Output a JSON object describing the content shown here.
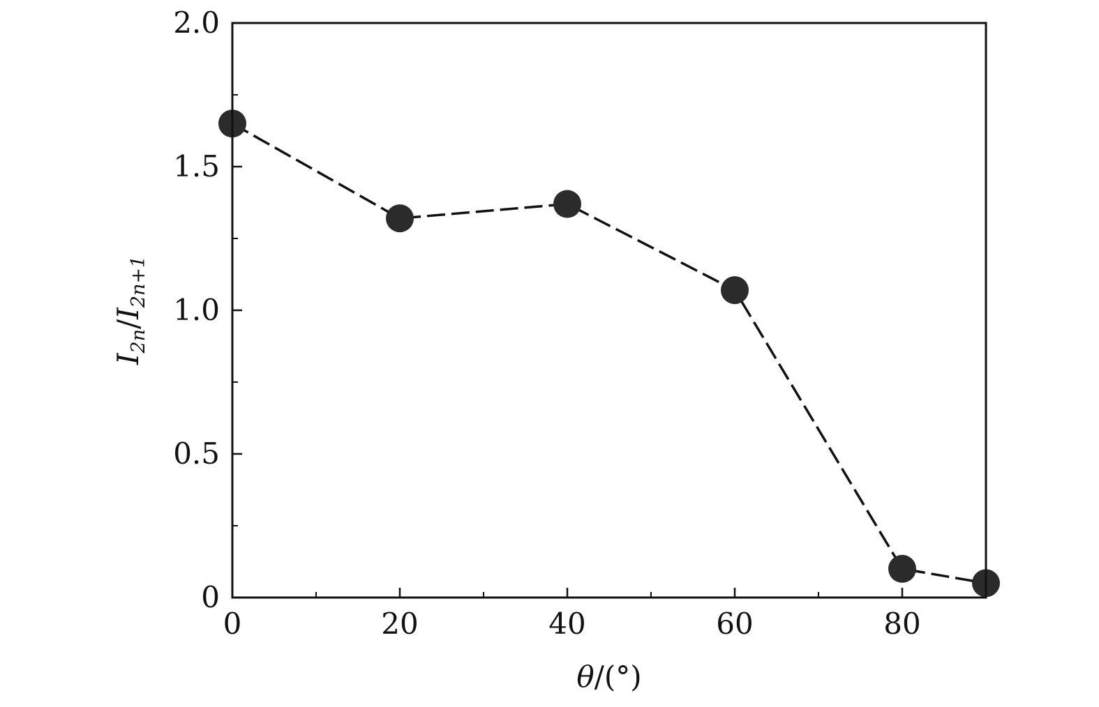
{
  "chart_data": {
    "type": "scatter",
    "title": "",
    "xlabel": {
      "symbol": "θ",
      "unit": "/(°)"
    },
    "ylabel": {
      "numerator": "I",
      "numerator_sub": "2n",
      "slash": "/",
      "denominator": "I",
      "denominator_sub": "2n+1"
    },
    "xlim": [
      0,
      90
    ],
    "ylim": [
      0,
      2.0
    ],
    "x_ticks": [
      {
        "value": 0,
        "label": "0"
      },
      {
        "value": 20,
        "label": "20"
      },
      {
        "value": 40,
        "label": "40"
      },
      {
        "value": 60,
        "label": "60"
      },
      {
        "value": 80,
        "label": "80"
      }
    ],
    "x_minor_ticks": [
      10,
      30,
      50,
      70
    ],
    "y_ticks": [
      {
        "value": 0,
        "label": "0"
      },
      {
        "value": 0.5,
        "label": "0.5"
      },
      {
        "value": 1.0,
        "label": "1.0"
      },
      {
        "value": 1.5,
        "label": "1.5"
      },
      {
        "value": 2.0,
        "label": "2.0"
      }
    ],
    "y_minor_ticks": [
      0.25,
      0.75,
      1.25,
      1.75
    ],
    "grid": false,
    "series": [
      {
        "marker": "filled-circle",
        "line": "dashed",
        "color": "#2b2b2b",
        "x": [
          0,
          20,
          40,
          60,
          80,
          90
        ],
        "y": [
          1.65,
          1.32,
          1.37,
          1.07,
          0.1,
          0.05
        ]
      }
    ]
  }
}
